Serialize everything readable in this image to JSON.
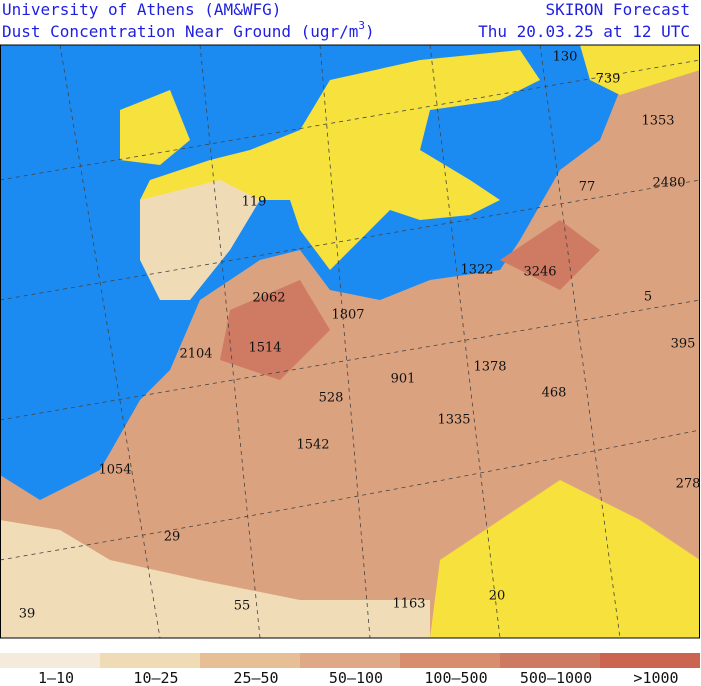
{
  "header": {
    "institution": "University of Athens (AM&WFG)",
    "product": "Dust Concentration Near Ground (ugr/m",
    "product_sup": "3",
    "product_close": ")",
    "model": "SKIRON Forecast",
    "valid": "Thu 20.03.25 at 12 UTC"
  },
  "map_labels": [
    130,
    739,
    1353,
    77,
    2480,
    119,
    1322,
    3246,
    5,
    2062,
    1807,
    1514,
    2104,
    395,
    901,
    1378,
    528,
    468,
    1335,
    1542,
    1054,
    278,
    29,
    20,
    1163,
    55,
    39
  ],
  "legend": [
    {
      "label": "1–10",
      "color": "#f4ebdc"
    },
    {
      "label": "10–25",
      "color": "#efdcb7"
    },
    {
      "label": "25–50",
      "color": "#e7bf97"
    },
    {
      "label": "50–100",
      "color": "#dfa887"
    },
    {
      "label": "100–500",
      "color": "#d88e6d"
    },
    {
      "label": "500–1000",
      "color": "#ce7a63"
    },
    {
      "label": ">1000",
      "color": "#cb6450"
    }
  ]
}
